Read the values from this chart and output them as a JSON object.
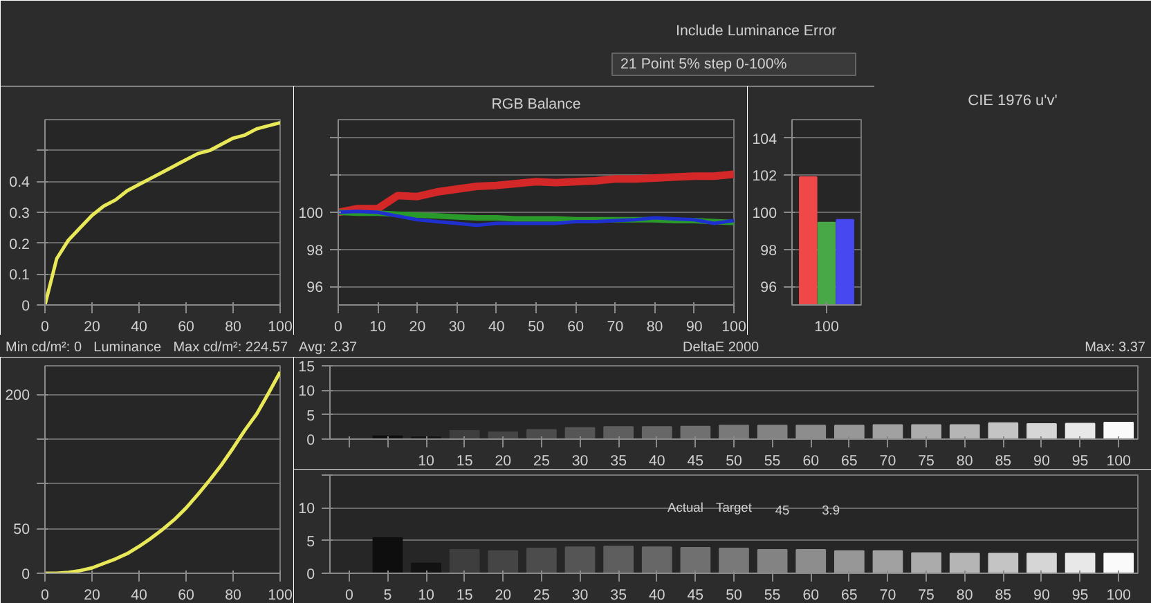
{
  "chart_data": [
    {
      "type": "other",
      "annotations": [
        "Include Luminance Error",
        "21 Point 5% step 0-100%"
      ]
    },
    {
      "type": "line",
      "x": [
        0,
        5,
        10,
        15,
        20,
        25,
        30,
        35,
        40,
        45,
        50,
        55,
        60,
        65,
        70,
        75,
        80,
        85,
        90,
        95,
        100
      ],
      "xlim": [
        0,
        100
      ],
      "xticks": [
        0,
        20,
        40,
        60,
        80,
        100
      ],
      "ylim": [
        0,
        0.6
      ],
      "yticks": [
        0,
        0.1,
        0.2,
        0.3,
        0.4,
        {
          "value": 0.5,
          "label": null
        }
      ],
      "grid": "y",
      "series": [
        {
          "color": "#e8e858",
          "values": [
            0,
            0.15,
            0.21,
            0.25,
            0.29,
            0.32,
            0.34,
            0.37,
            0.39,
            0.41,
            0.43,
            0.45,
            0.47,
            0.49,
            0.5,
            0.52,
            0.54,
            0.55,
            0.57,
            0.58,
            0.59
          ]
        }
      ]
    },
    {
      "type": "line",
      "title": "RGB Balance",
      "x": [
        0,
        5,
        10,
        15,
        20,
        25,
        30,
        35,
        40,
        45,
        50,
        55,
        60,
        65,
        70,
        75,
        80,
        85,
        90,
        95,
        100
      ],
      "xlim": [
        0,
        100
      ],
      "xticks": [
        0,
        10,
        20,
        30,
        40,
        50,
        60,
        70,
        80,
        90,
        100
      ],
      "ylim": [
        95,
        105
      ],
      "yticks": [
        96,
        98,
        100,
        {
          "value": 102,
          "label": null
        },
        {
          "value": 104,
          "label": null
        }
      ],
      "grid": "y",
      "series": [
        {
          "color": "#d42828",
          "values": [
            100,
            100.2,
            100.2,
            100.9,
            100.85,
            101.1,
            101.25,
            101.4,
            101.45,
            101.55,
            101.65,
            101.6,
            101.65,
            101.7,
            101.8,
            101.8,
            101.85,
            101.9,
            101.95,
            101.95,
            102.05
          ]
        },
        {
          "color": "#2a9a2a",
          "values": [
            100,
            99.95,
            99.95,
            99.9,
            99.85,
            99.8,
            99.75,
            99.7,
            99.7,
            99.65,
            99.65,
            99.65,
            99.6,
            99.6,
            99.6,
            99.6,
            99.6,
            99.55,
            99.55,
            99.5,
            99.45
          ]
        },
        {
          "color": "#2030d0",
          "values": [
            100,
            100.05,
            100,
            99.8,
            99.6,
            99.5,
            99.4,
            99.3,
            99.4,
            99.4,
            99.4,
            99.4,
            99.5,
            99.5,
            99.55,
            99.6,
            99.7,
            99.65,
            99.6,
            99.4,
            99.55
          ]
        }
      ]
    },
    {
      "type": "bar",
      "categories": [
        "100"
      ],
      "ylim": [
        95,
        105
      ],
      "yticks": [
        96,
        98,
        100,
        102,
        104
      ],
      "grid": "y",
      "series": [
        {
          "color": "#f04848",
          "values": [
            101.9
          ]
        },
        {
          "color": "#48a848",
          "values": [
            99.45
          ]
        },
        {
          "color": "#4848f0",
          "values": [
            99.6
          ]
        }
      ]
    },
    {
      "type": "other",
      "title": "CIE 1976 u'v'"
    },
    {
      "type": "line",
      "title": "Luminance",
      "annotations": [
        "Min cd/m²: 0",
        "Max cd/m²: 224.57"
      ],
      "x": [
        0,
        5,
        10,
        15,
        20,
        25,
        30,
        35,
        40,
        45,
        50,
        55,
        60,
        65,
        70,
        75,
        80,
        85,
        90,
        95,
        100
      ],
      "xlim": [
        0,
        100
      ],
      "xticks": [
        0,
        20,
        40,
        60,
        80,
        100
      ],
      "ylim": [
        0,
        232
      ],
      "yticks": [
        0,
        50,
        {
          "value": 100,
          "label": null
        },
        {
          "value": 150,
          "label": null
        },
        200
      ],
      "grid": "y",
      "series": [
        {
          "color": "#e8e858",
          "values": [
            0,
            0,
            1,
            3,
            6,
            11,
            16,
            22,
            30,
            39,
            49,
            60,
            73,
            88,
            104,
            121,
            140,
            160,
            178,
            201,
            225
          ]
        }
      ]
    },
    {
      "type": "bar",
      "title": "DeltaE 2000",
      "annotations": [
        "Avg: 2.37",
        "Max: 3.37"
      ],
      "categories": [
        null,
        null,
        "10",
        "15",
        "20",
        "25",
        "30",
        "35",
        "40",
        "45",
        "50",
        "55",
        "60",
        "65",
        "70",
        "75",
        "80",
        "85",
        "90",
        "95",
        "100"
      ],
      "ylim": [
        0,
        15
      ],
      "yticks": [
        0,
        5,
        10,
        15
      ],
      "grid": "y",
      "values": [
        0,
        0.6,
        0.4,
        1.7,
        1.4,
        1.9,
        2.3,
        2.5,
        2.5,
        2.6,
        2.8,
        2.8,
        2.8,
        2.8,
        2.9,
        2.9,
        2.9,
        3.3,
        3.1,
        3.2,
        3.4
      ],
      "colors": [
        "#0a0a0a",
        "#0e0e0e",
        "#121212",
        "#3e3e3e",
        "#454545",
        "#4c4c4c",
        "#555555",
        "#5e5e5e",
        "#676767",
        "#707070",
        "#797979",
        "#838383",
        "#8d8d8d",
        "#979797",
        "#a1a1a1",
        "#ababab",
        "#b5b5b5",
        "#c4c4c4",
        "#d6d6d6",
        "#e8e8e8",
        "#fafafa"
      ]
    },
    {
      "type": "bar",
      "annotations": [
        "Actual",
        "Target",
        "45",
        "3.9"
      ],
      "categories": [
        "0",
        "5",
        "10",
        "15",
        "20",
        "25",
        "30",
        "35",
        "40",
        "45",
        "50",
        "55",
        "60",
        "65",
        "70",
        "75",
        "80",
        "85",
        "90",
        "95",
        "100"
      ],
      "ylim": [
        0,
        15
      ],
      "yticks": [
        0,
        5,
        10,
        {
          "value": 15,
          "label": null
        }
      ],
      "grid": "y",
      "values": [
        0,
        5.4,
        1.5,
        3.6,
        3.4,
        3.8,
        4.0,
        4.1,
        4.0,
        3.9,
        3.8,
        3.6,
        3.6,
        3.4,
        3.4,
        3.1,
        3.0,
        3.0,
        3.0,
        3.0,
        3.0
      ],
      "colors": [
        "#0a0a0a",
        "#0e0e0e",
        "#121212",
        "#3e3e3e",
        "#454545",
        "#4c4c4c",
        "#555555",
        "#5e5e5e",
        "#676767",
        "#707070",
        "#797979",
        "#838383",
        "#8d8d8d",
        "#979797",
        "#a1a1a1",
        "#ababab",
        "#b5b5b5",
        "#c4c4c4",
        "#d6d6d6",
        "#e8e8e8",
        "#fafafa"
      ]
    }
  ]
}
